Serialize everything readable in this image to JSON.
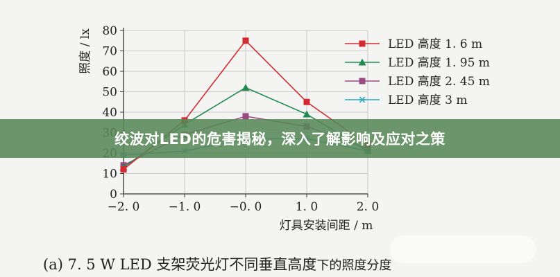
{
  "chart_data": {
    "type": "line",
    "x": [
      -2.0,
      -1.0,
      0.0,
      1.0,
      2.0
    ],
    "x_tick_labels": [
      "−2. 0",
      "−1. 0",
      "−0. 0",
      "1. 0",
      "2. 0"
    ],
    "y_ticks": [
      0,
      10,
      20,
      30,
      40,
      50,
      60,
      70,
      80
    ],
    "xlim": [
      -2.0,
      2.0
    ],
    "ylim": [
      0,
      80
    ],
    "xlabel": "灯具安装间距 / m",
    "ylabel": "照度 / lx",
    "grid": true,
    "legend_position": "top-right",
    "series": [
      {
        "name": "LED 高度 1. 6 m",
        "color": "#d42a32",
        "marker": "square",
        "values": [
          12,
          36,
          75,
          45,
          24
        ]
      },
      {
        "name": "LED 高度 1. 95 m",
        "color": "#1f8a50",
        "marker": "triangle",
        "values": [
          13,
          34,
          52,
          39,
          21
        ]
      },
      {
        "name": "LED 高度 2. 45 m",
        "color": "#9a4a82",
        "marker": "square",
        "values": [
          14,
          29,
          38,
          33,
          22
        ]
      },
      {
        "name": "LED 高度 3 m",
        "color": "#2aa7c4",
        "marker": "star",
        "values": [
          19,
          21,
          27,
          27,
          21
        ]
      }
    ]
  },
  "banner": {
    "title": "绞波对LED的危害揭秘，深入了解影响及应对之策"
  },
  "caption": {
    "prefix": "(a)  7. 5 W LED 支架荧光灯不同垂直高度",
    "suffix": "下的照度分度"
  }
}
